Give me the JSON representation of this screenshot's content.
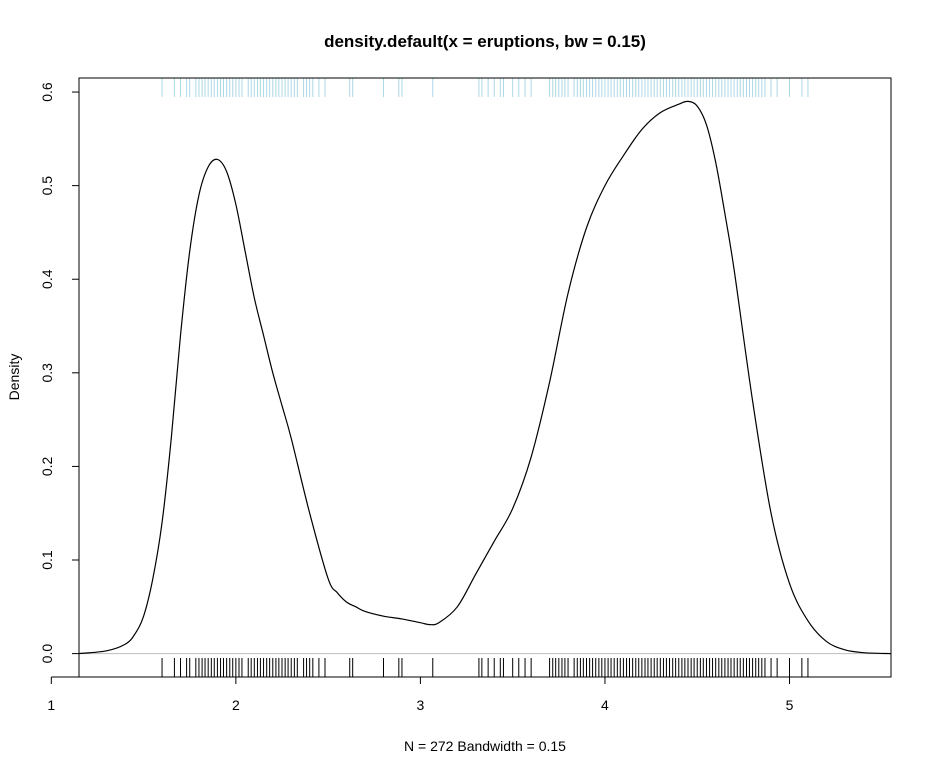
{
  "chart_data": {
    "type": "line",
    "title": "density.default(x = eruptions, bw = 0.15)",
    "xlabel": "N = 272   Bandwidth = 0.15",
    "ylabel": "Density",
    "xlim": [
      1.15,
      5.55
    ],
    "ylim": [
      -0.025,
      0.615
    ],
    "x_ticks": [
      1,
      2,
      3,
      4,
      5
    ],
    "y_ticks": [
      0.0,
      0.1,
      0.2,
      0.3,
      0.4,
      0.5,
      0.6
    ],
    "x_tick_labels": [
      "1",
      "2",
      "3",
      "4",
      "5"
    ],
    "y_tick_labels": [
      "0.0",
      "0.1",
      "0.2",
      "0.3",
      "0.4",
      "0.5",
      "0.6"
    ],
    "zero_line": true,
    "grid": false,
    "series": [
      {
        "color": "#000000",
        "x": [
          1.15,
          1.3,
          1.4,
          1.45,
          1.5,
          1.55,
          1.6,
          1.65,
          1.7,
          1.75,
          1.8,
          1.85,
          1.9,
          1.95,
          2.0,
          2.05,
          2.1,
          2.15,
          2.2,
          2.25,
          2.3,
          2.4,
          2.5,
          2.55,
          2.6,
          2.65,
          2.7,
          2.8,
          2.9,
          3.0,
          3.05,
          3.1,
          3.2,
          3.3,
          3.4,
          3.5,
          3.6,
          3.7,
          3.8,
          3.9,
          4.0,
          4.1,
          4.2,
          4.3,
          4.4,
          4.45,
          4.5,
          4.55,
          4.6,
          4.65,
          4.7,
          4.8,
          4.9,
          5.0,
          5.1,
          5.2,
          5.3,
          5.4,
          5.55
        ],
        "y": [
          0.0,
          0.003,
          0.01,
          0.02,
          0.04,
          0.08,
          0.14,
          0.23,
          0.34,
          0.43,
          0.49,
          0.52,
          0.528,
          0.515,
          0.48,
          0.43,
          0.38,
          0.34,
          0.3,
          0.265,
          0.23,
          0.15,
          0.08,
          0.065,
          0.055,
          0.05,
          0.045,
          0.04,
          0.037,
          0.033,
          0.031,
          0.033,
          0.05,
          0.085,
          0.12,
          0.155,
          0.21,
          0.29,
          0.385,
          0.455,
          0.5,
          0.532,
          0.56,
          0.578,
          0.587,
          0.59,
          0.585,
          0.565,
          0.525,
          0.47,
          0.41,
          0.27,
          0.15,
          0.075,
          0.035,
          0.013,
          0.004,
          0.001,
          0.0
        ]
      }
    ],
    "rug": {
      "bottom_color": "#000000",
      "top_color": "#add8e6",
      "values": [
        1.6,
        1.667,
        1.7,
        1.733,
        1.75,
        1.783,
        1.8,
        1.817,
        1.833,
        1.85,
        1.867,
        1.883,
        1.9,
        1.917,
        1.933,
        1.95,
        1.967,
        1.983,
        2.0,
        2.017,
        2.033,
        2.067,
        2.083,
        2.1,
        2.117,
        2.133,
        2.15,
        2.167,
        2.183,
        2.2,
        2.217,
        2.233,
        2.25,
        2.267,
        2.283,
        2.3,
        2.317,
        2.333,
        2.367,
        2.383,
        2.4,
        2.417,
        2.45,
        2.483,
        2.617,
        2.633,
        2.8,
        2.883,
        2.9,
        3.067,
        3.317,
        3.333,
        3.367,
        3.4,
        3.433,
        3.45,
        3.5,
        3.533,
        3.567,
        3.6,
        3.7,
        3.717,
        3.733,
        3.75,
        3.767,
        3.783,
        3.8,
        3.833,
        3.85,
        3.867,
        3.883,
        3.9,
        3.917,
        3.933,
        3.95,
        3.967,
        3.983,
        4.0,
        4.017,
        4.033,
        4.05,
        4.067,
        4.083,
        4.1,
        4.117,
        4.133,
        4.15,
        4.167,
        4.183,
        4.2,
        4.217,
        4.233,
        4.25,
        4.267,
        4.283,
        4.3,
        4.317,
        4.333,
        4.35,
        4.367,
        4.383,
        4.4,
        4.417,
        4.433,
        4.45,
        4.467,
        4.483,
        4.5,
        4.517,
        4.533,
        4.55,
        4.567,
        4.583,
        4.6,
        4.617,
        4.633,
        4.65,
        4.667,
        4.683,
        4.7,
        4.717,
        4.733,
        4.75,
        4.767,
        4.783,
        4.8,
        4.817,
        4.833,
        4.85,
        4.867,
        4.9,
        4.933,
        5.0,
        5.067,
        5.1
      ]
    }
  }
}
